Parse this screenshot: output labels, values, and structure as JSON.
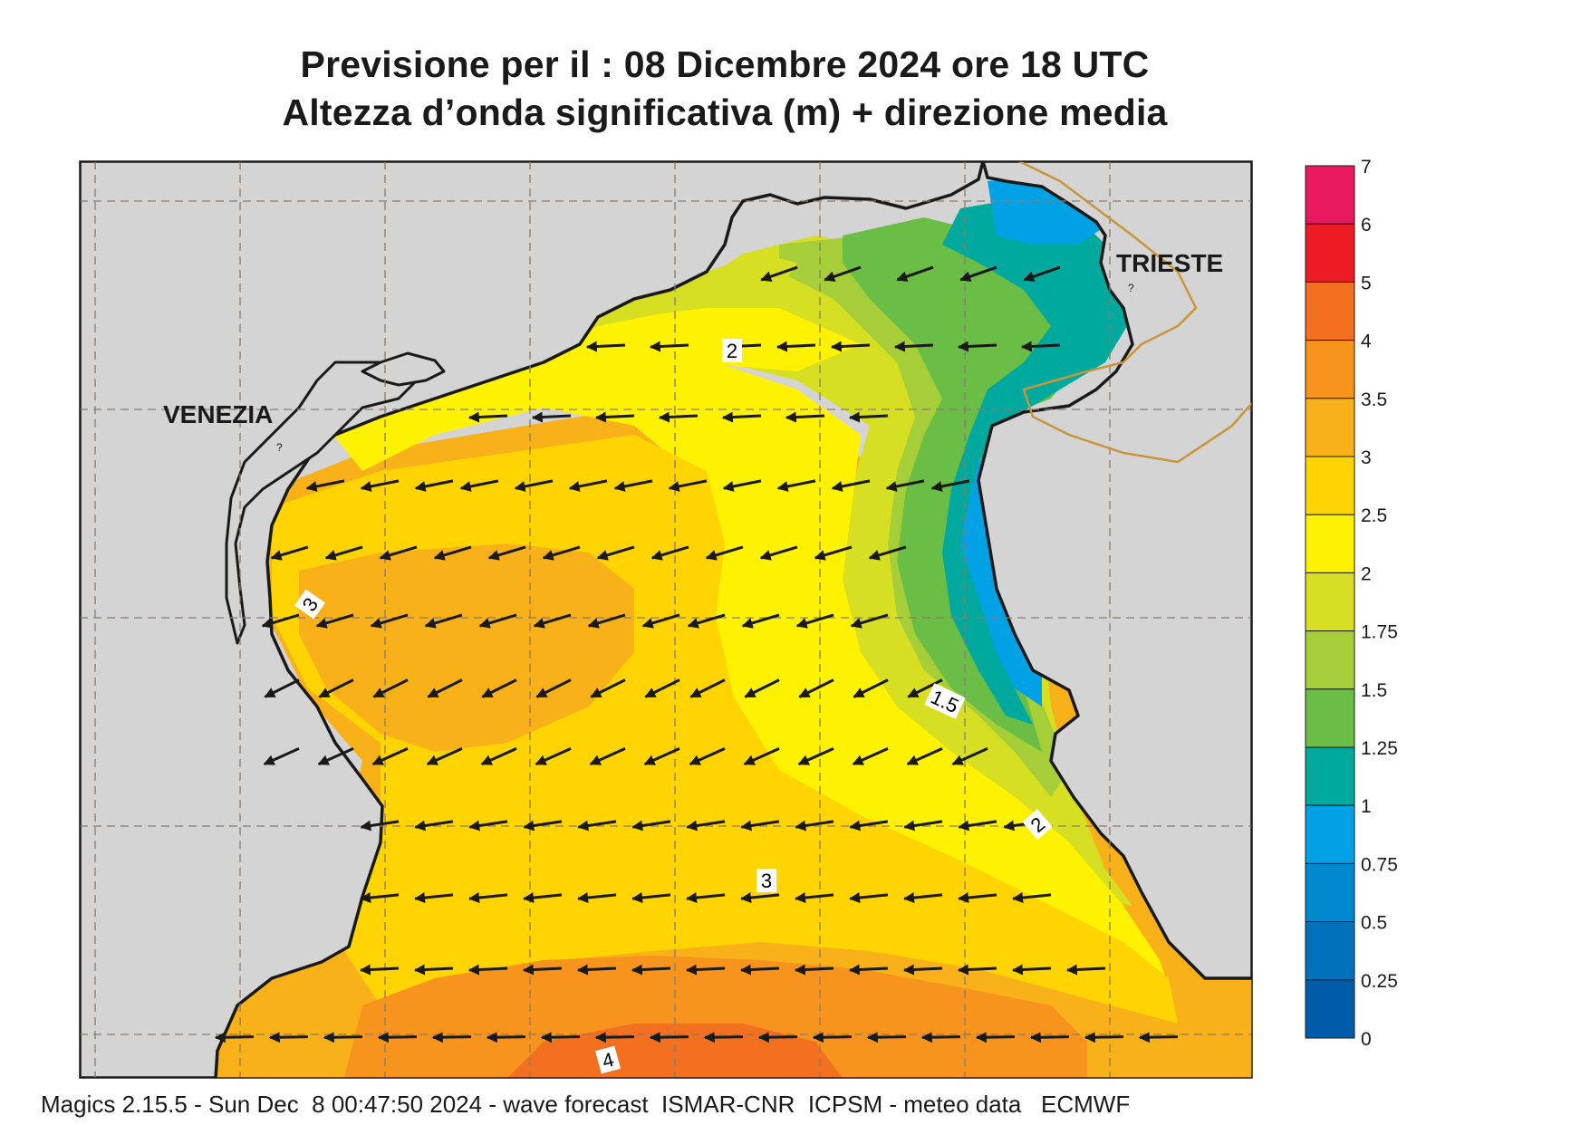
{
  "title": {
    "line1": "Previsione per il  :  08 Dicembre  2024   ore 18 UTC",
    "line2": "Altezza d’onda significativa (m) + direzione media"
  },
  "places": {
    "venezia": "VENEZIA",
    "trieste": "TRIESTE",
    "marks": [
      "?",
      "?"
    ]
  },
  "colorbar": {
    "ticks": [
      "7",
      "6",
      "5",
      "4",
      "3.5",
      "3",
      "2.5",
      "2",
      "1.75",
      "1.5",
      "1.25",
      "1",
      "0.75",
      "0.5",
      "0.25",
      "0"
    ],
    "colors": [
      "#e8195e",
      "#ed1c24",
      "#f37021",
      "#f7941d",
      "#f9b11a",
      "#ffd400",
      "#fff200",
      "#d7df23",
      "#a6ce39",
      "#6abd45",
      "#00a99d",
      "#00a2e5",
      "#0089cf",
      "#0072bc",
      "#005baa"
    ]
  },
  "contour_labels": [
    "2",
    "3",
    "1.5",
    "2",
    "3",
    "4"
  ],
  "colors": {
    "land": "#d4d4d4",
    "coast": "#1a1a1a",
    "border": "#c8953a",
    "grid": "#8c7b6a",
    "arrow": "#1a1a1a"
  },
  "footer": "Magics 2.15.5 - Sun Dec  8 00:47:50 2024 - wave forecast  ISMAR-CNR  ICPSM - meteo data   ECMWF"
}
